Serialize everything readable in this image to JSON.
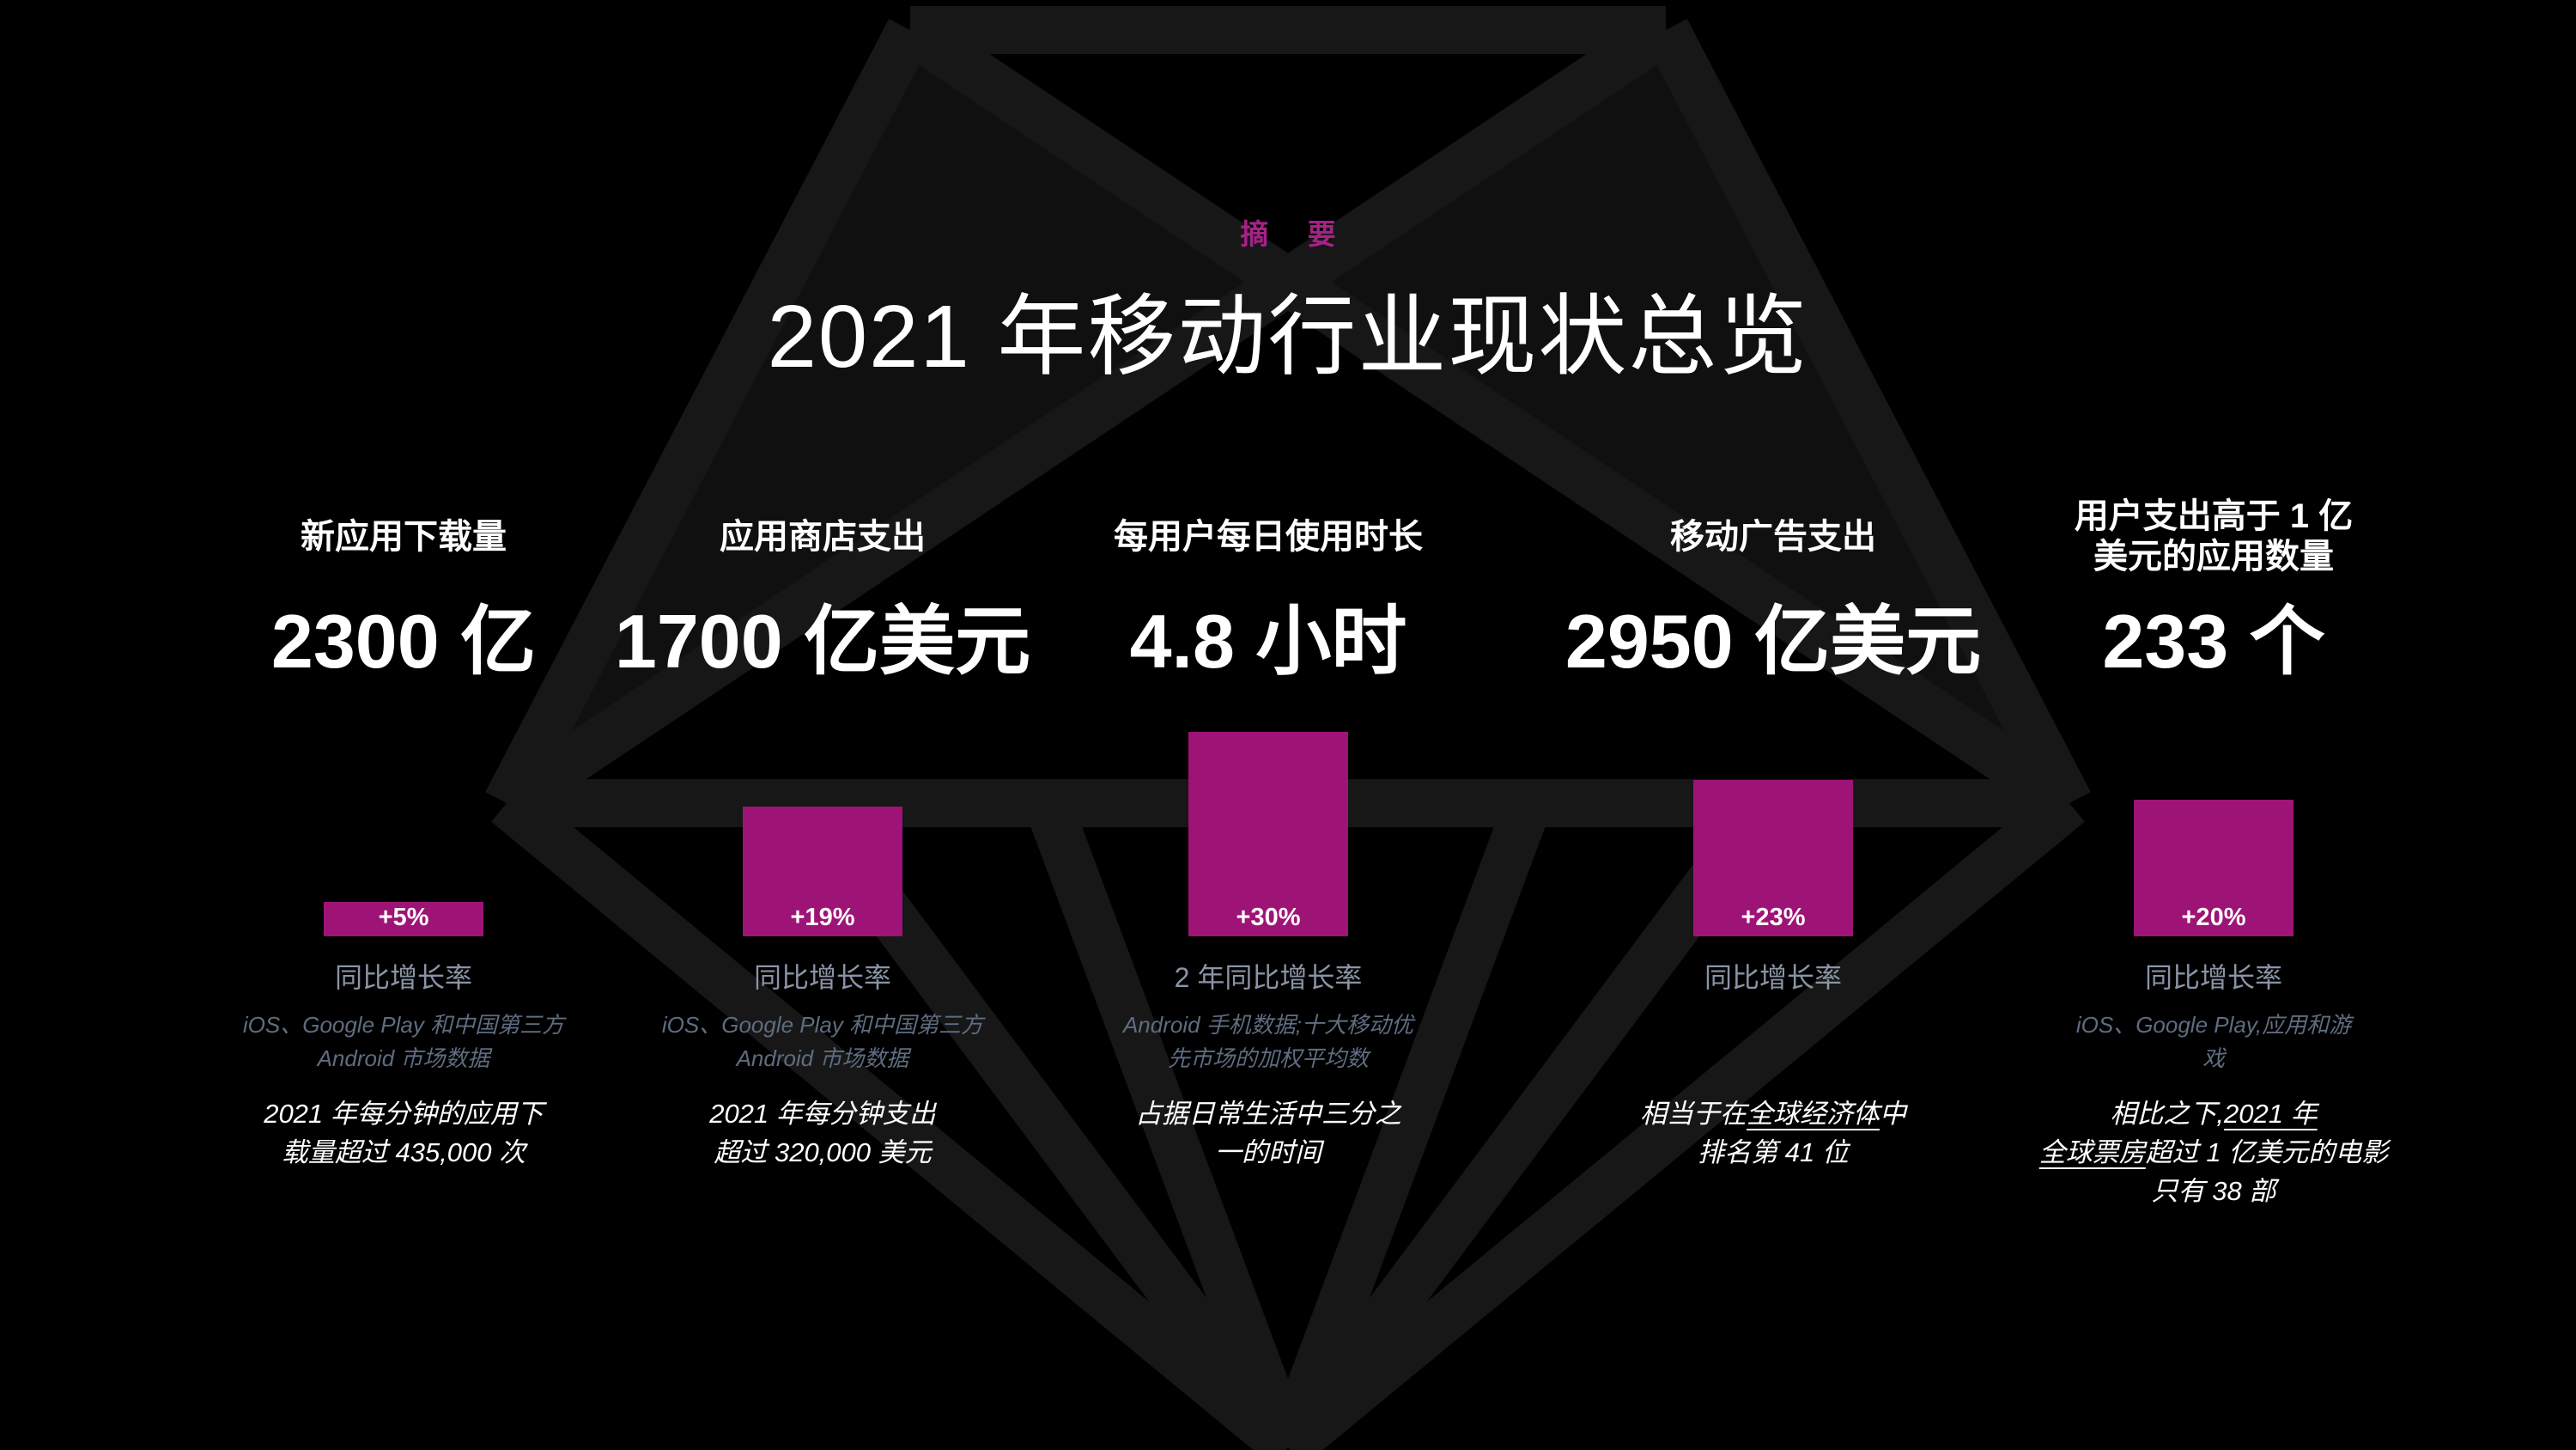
{
  "page": {
    "eyebrow": "摘 要",
    "title": "2021 年移动行业现状总览"
  },
  "colors": {
    "background": "#000000",
    "accent_bar": "#9E1376",
    "eyebrow_magenta": "#A52287",
    "caption_gray": "#8A94A6",
    "source_gray": "#5F6C80",
    "watermark_gray": "#171717",
    "text_white": "#FFFFFF"
  },
  "chart_data": {
    "type": "bar",
    "title": "2021 年移动行业现状总览",
    "orientation": "vertical",
    "axis": "none",
    "grid": false,
    "legend": false,
    "bars_bottom_aligned": true,
    "categories": [
      "新应用下载量",
      "应用商店支出",
      "每用户每日使用时长",
      "移动广告支出",
      "用户支出高于 1 亿美元的应用数量"
    ],
    "values": [
      5,
      19,
      30,
      23,
      20
    ],
    "value_labels": [
      "+5%",
      "+19%",
      "+30%",
      "+23%",
      "+20%"
    ],
    "headline_values": [
      "2300 亿",
      "1700 亿美元",
      "4.8 小时",
      "2950 亿美元",
      "233 个"
    ],
    "columns": [
      {
        "header1": "新应用下载量",
        "header2": "",
        "value": "2300 亿",
        "growth_label": "+5%",
        "growth_caption": "同比增长率",
        "source1": "iOS、Google Play 和中国第三方",
        "source2": "Android 市场数据",
        "note1_pre": "2021 年每分钟的应用下",
        "note1_link": "",
        "note1_post": "",
        "note2_pre": "载量超过 435,000 次",
        "note2_link": "",
        "note2_post": "",
        "note3_pre": ""
      },
      {
        "header1": "应用商店支出",
        "header2": "",
        "value": "1700 亿美元",
        "growth_label": "+19%",
        "growth_caption": "同比增长率",
        "source1": "iOS、Google Play 和中国第三方",
        "source2": "Android 市场数据",
        "note1_pre": "2021 年每分钟支出",
        "note1_link": "",
        "note1_post": "",
        "note2_pre": "超过 320,000 美元",
        "note2_link": "",
        "note2_post": "",
        "note3_pre": ""
      },
      {
        "header1": "每用户每日使用时长",
        "header2": "",
        "value": "4.8 小时",
        "growth_label": "+30%",
        "growth_caption": "2 年同比增长率",
        "source1": "Android 手机数据;十大移动优",
        "source2": "先市场的加权平均数",
        "note1_pre": "占据日常生活中三分之",
        "note1_link": "",
        "note1_post": "",
        "note2_pre": "一的时间",
        "note2_link": "",
        "note2_post": "",
        "note3_pre": ""
      },
      {
        "header1": "移动广告支出",
        "header2": "",
        "value": "2950 亿美元",
        "growth_label": "+23%",
        "growth_caption": "同比增长率",
        "source1": "",
        "source2": "",
        "note1_pre": "相当于在",
        "note1_link": "全球经济体",
        "note1_post": "中",
        "note2_pre": "排名第 41 位",
        "note2_link": "",
        "note2_post": "",
        "note3_pre": ""
      },
      {
        "header1": "用户支出高于 1 亿",
        "header2": "美元的应用数量",
        "value": "233 个",
        "growth_label": "+20%",
        "growth_caption": "同比增长率",
        "source1": "iOS、Google Play,应用和游",
        "source2": "戏",
        "note1_pre": "相比之下,",
        "note1_link": "2021 年",
        "note1_post": "",
        "note2_pre": "",
        "note2_link": "全球票房",
        "note2_post": "超过 1 亿美元的电影",
        "note3_pre": "只有 38 部"
      }
    ]
  }
}
